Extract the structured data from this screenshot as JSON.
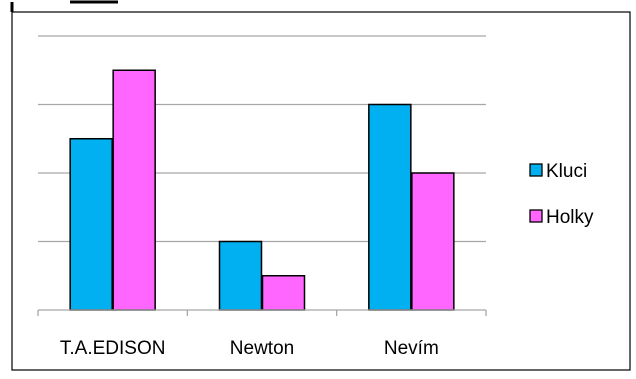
{
  "chart_data": {
    "type": "bar",
    "categories": [
      "T.A.EDISON",
      "Newton",
      "Nevím"
    ],
    "series": [
      {
        "name": "Kluci",
        "values": [
          5,
          2,
          6
        ],
        "color": "#00B0F0"
      },
      {
        "name": "Holky",
        "values": [
          7,
          1,
          4
        ],
        "color": "#FF66FF"
      }
    ],
    "title": "",
    "xlabel": "",
    "ylabel": "",
    "ylim": [
      0,
      8
    ],
    "grid": true,
    "legend_position": "right",
    "tick_labels_y": false
  }
}
